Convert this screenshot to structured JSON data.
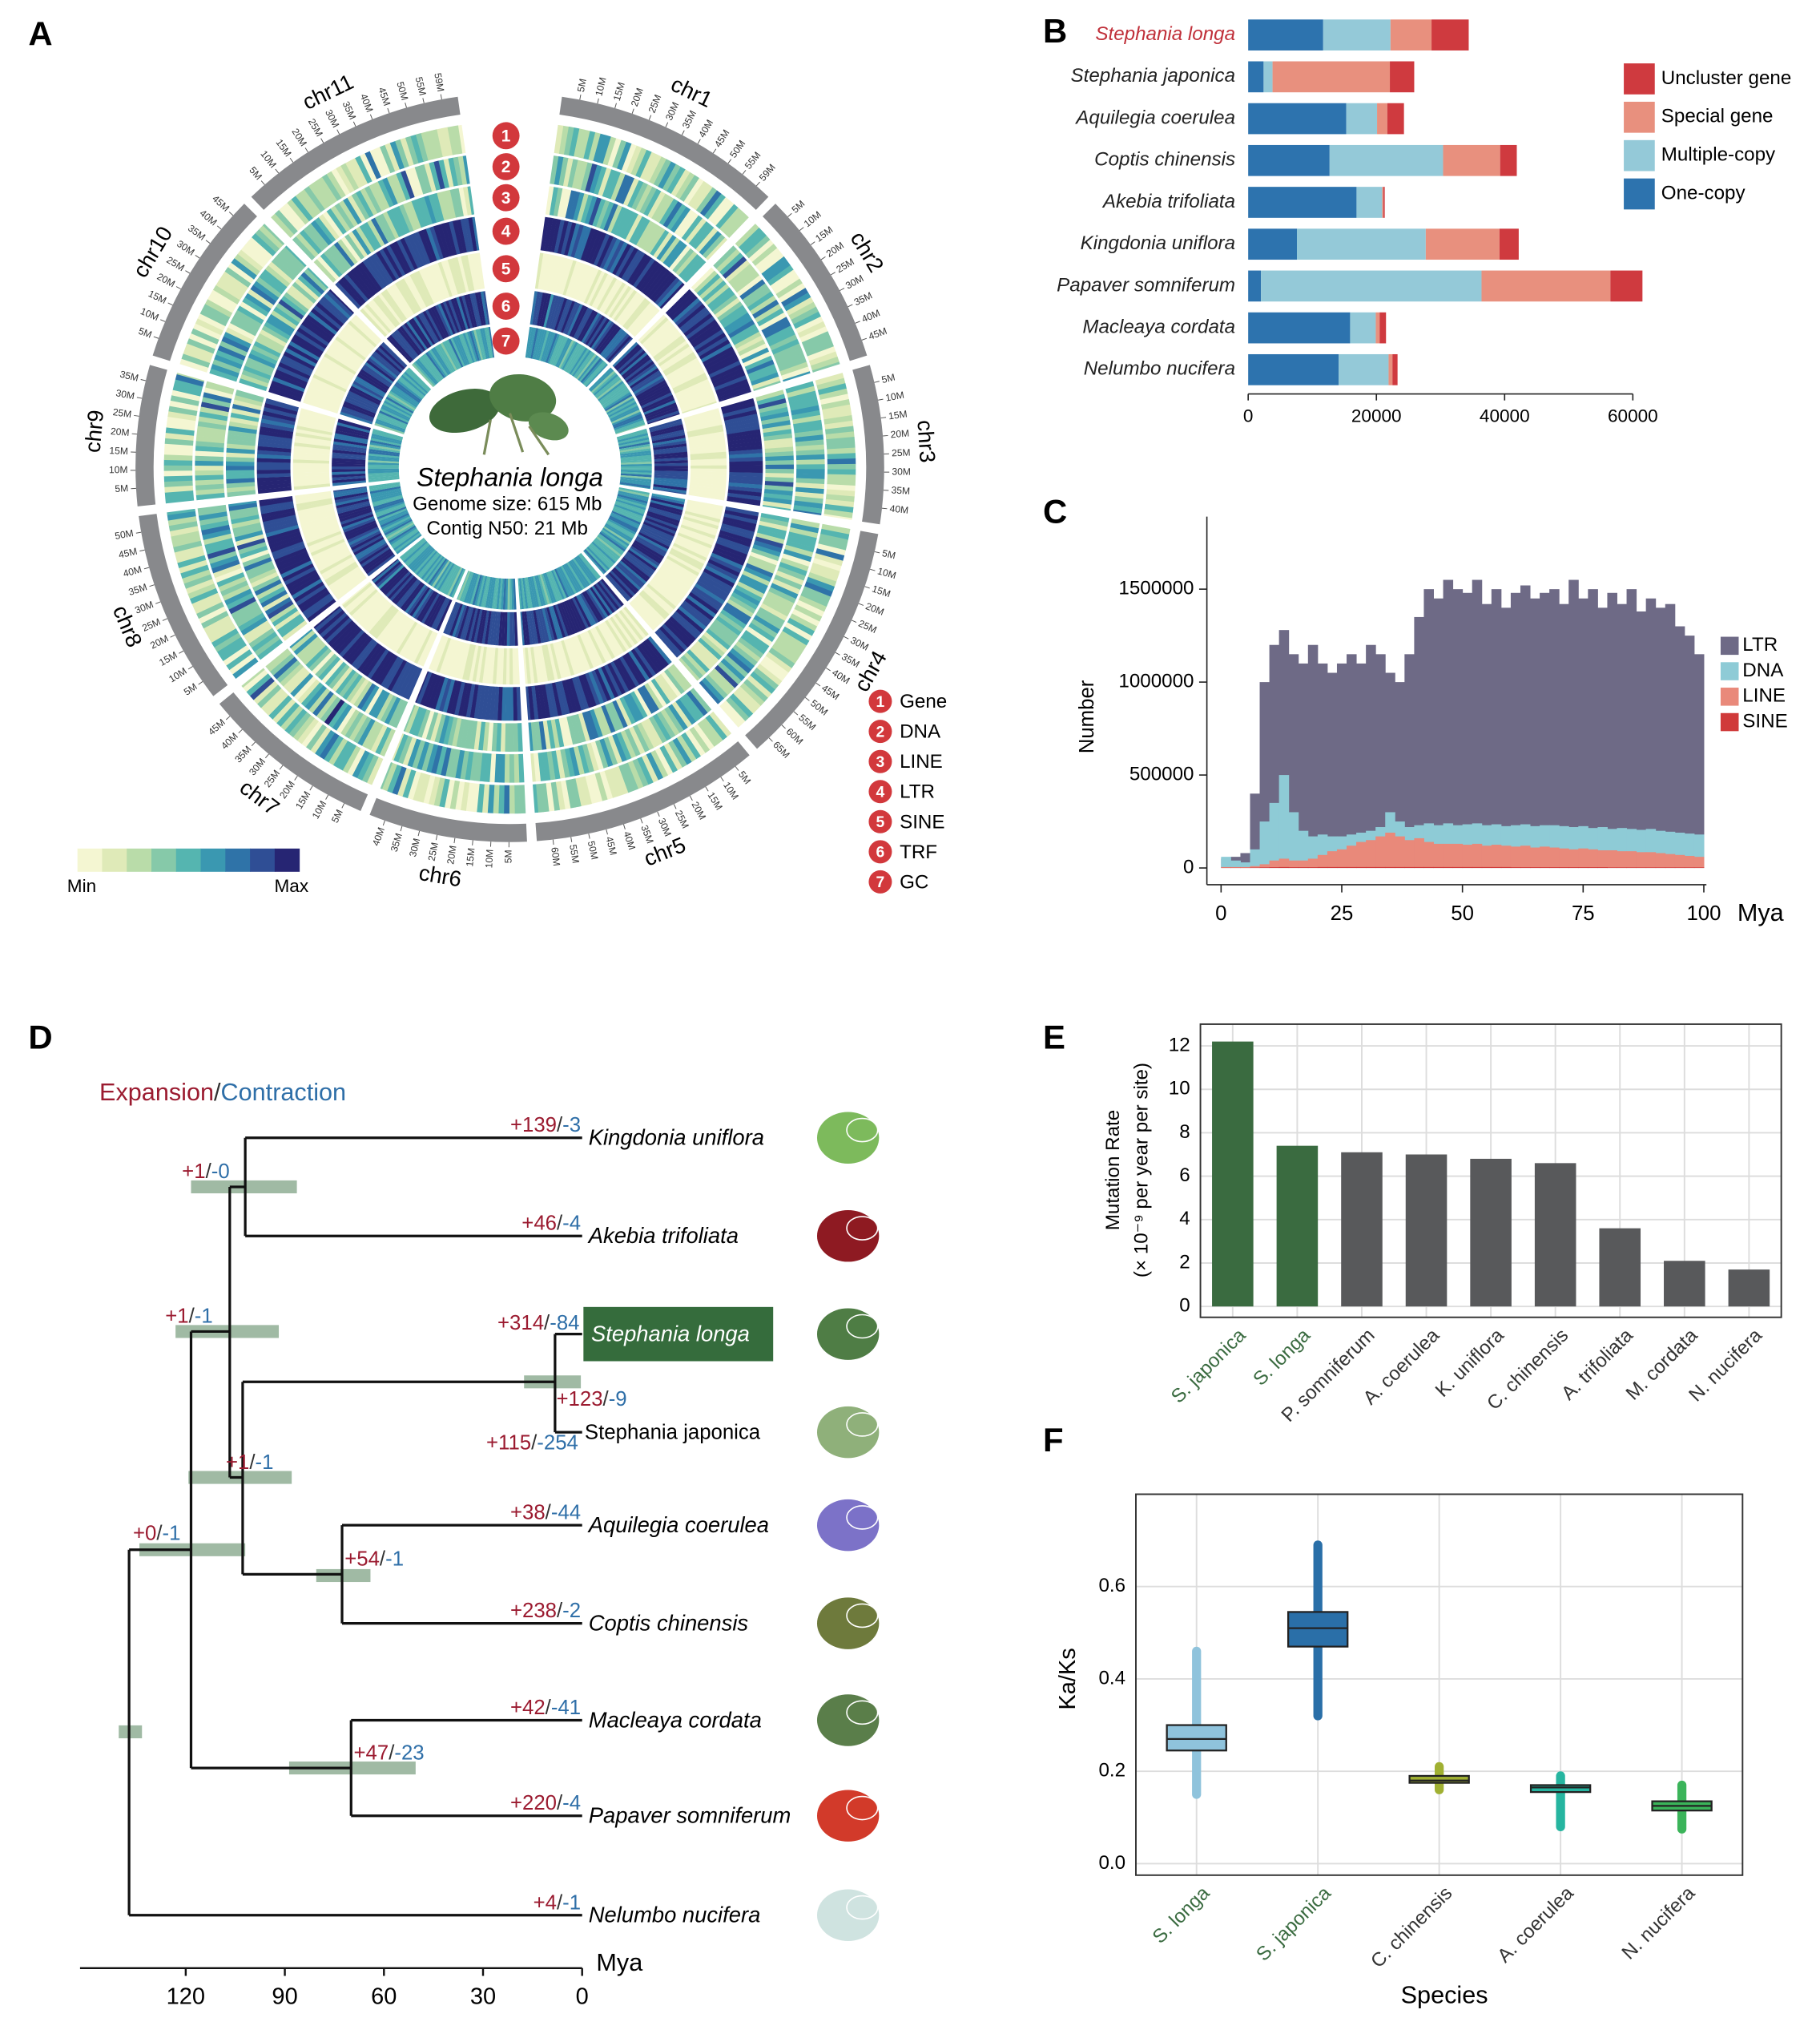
{
  "panels": [
    "A",
    "B",
    "C",
    "D",
    "E",
    "F"
  ],
  "circos": {
    "chromosomes": [
      {
        "name": "chr1",
        "ticks": [
          "5M",
          "10M",
          "15M",
          "20M",
          "25M",
          "30M",
          "35M",
          "40M",
          "45M",
          "50M",
          "55M",
          "59M"
        ]
      },
      {
        "name": "chr2",
        "ticks": [
          "5M",
          "10M",
          "15M",
          "20M",
          "25M",
          "30M",
          "35M",
          "40M",
          "45M"
        ]
      },
      {
        "name": "chr3",
        "ticks": [
          "5M",
          "10M",
          "15M",
          "20M",
          "25M",
          "30M",
          "35M",
          "40M"
        ]
      },
      {
        "name": "chr4",
        "ticks": [
          "5M",
          "10M",
          "15M",
          "20M",
          "25M",
          "30M",
          "35M",
          "40M",
          "45M",
          "50M",
          "55M",
          "60M",
          "65M"
        ]
      },
      {
        "name": "chr5",
        "ticks": [
          "5M",
          "10M",
          "15M",
          "20M",
          "25M",
          "30M",
          "35M",
          "40M",
          "45M",
          "50M",
          "55M",
          "60M"
        ]
      },
      {
        "name": "chr6",
        "ticks": [
          "5M",
          "10M",
          "15M",
          "20M",
          "25M",
          "30M",
          "35M",
          "40M"
        ]
      },
      {
        "name": "chr7",
        "ticks": [
          "5M",
          "10M",
          "15M",
          "20M",
          "25M",
          "30M",
          "35M",
          "40M",
          "45M"
        ]
      },
      {
        "name": "chr8",
        "ticks": [
          "5M",
          "10M",
          "15M",
          "20M",
          "25M",
          "30M",
          "35M",
          "40M",
          "45M",
          "50M"
        ]
      },
      {
        "name": "chr9",
        "ticks": [
          "5M",
          "10M",
          "15M",
          "20M",
          "25M",
          "30M",
          "35M"
        ]
      },
      {
        "name": "chr10",
        "ticks": [
          "5M",
          "10M",
          "15M",
          "20M",
          "25M",
          "30M",
          "35M",
          "40M",
          "45M"
        ]
      },
      {
        "name": "chr11",
        "ticks": [
          "5M",
          "10M",
          "15M",
          "20M",
          "25M",
          "30M",
          "35M",
          "40M",
          "45M",
          "50M",
          "55M",
          "59M"
        ]
      }
    ],
    "tracks": [
      {
        "number": 1,
        "name": "Gene"
      },
      {
        "number": 2,
        "name": "DNA"
      },
      {
        "number": 3,
        "name": "LINE"
      },
      {
        "number": 4,
        "name": "LTR"
      },
      {
        "number": 5,
        "name": "SINE"
      },
      {
        "number": 6,
        "name": "TRF"
      },
      {
        "number": 7,
        "name": "GC"
      }
    ],
    "species": "Stephania longa",
    "genome_size": "Genome size: 615 Mb",
    "contig_n50": "Contig N50: 21 Mb",
    "scale": {
      "min": "Min",
      "max": "Max",
      "palette": [
        "#f4f6d2",
        "#dfeab8",
        "#b9dca9",
        "#86c9a9",
        "#55b5b0",
        "#3a98b1",
        "#2f73a8",
        "#2f4e95",
        "#262573"
      ]
    }
  },
  "tree": {
    "title": {
      "expansion": "Expansion",
      "separator": "/",
      "contraction": "Contraction"
    },
    "leaves": [
      {
        "name": "Kingdonia uniflora",
        "expansion": "+139",
        "contraction": "-3"
      },
      {
        "name": "Akebia trifoliata",
        "expansion": "+46",
        "contraction": "-4"
      },
      {
        "name": "Stephania longa",
        "expansion": "+314",
        "contraction": "-84"
      },
      {
        "name": "Stephania japonica",
        "expansion": "+115",
        "contraction": "-254"
      },
      {
        "name": "Aquilegia coerulea",
        "expansion": "+38",
        "contraction": "-44"
      },
      {
        "name": "Coptis chinensis",
        "expansion": "+238",
        "contraction": "-2"
      },
      {
        "name": "Macleaya cordata",
        "expansion": "+42",
        "contraction": "-41"
      },
      {
        "name": "Papaver somniferum",
        "expansion": "+220",
        "contraction": "-4"
      },
      {
        "name": "Nelumbo nucifera",
        "expansion": "+4",
        "contraction": "-1"
      }
    ],
    "nodes": [
      {
        "expansion": "+1",
        "contraction": "-0"
      },
      {
        "expansion": "+123",
        "contraction": "-9"
      },
      {
        "expansion": "+54",
        "contraction": "-1"
      },
      {
        "expansion": "+47",
        "contraction": "-23"
      },
      {
        "expansion": "+1",
        "contraction": "-1"
      },
      {
        "expansion": "+1",
        "contraction": "-1"
      },
      {
        "expansion": "+0",
        "contraction": "-1"
      }
    ],
    "axis": {
      "lim": [
        152,
        0
      ],
      "ticks": [
        120,
        90,
        60,
        30,
        0
      ],
      "label": "Mya"
    }
  },
  "chart_data": [
    {
      "type": "bar",
      "orientation": "horizontal",
      "stacked": true,
      "categories": [
        "Stephania longa",
        "Stephania japonica",
        "Aquilegia coerulea",
        "Coptis chinensis",
        "Akebia trifoliata",
        "Kingdonia uniflora",
        "Papaver somniferum",
        "Macleaya cordata",
        "Nelumbo nucifera"
      ],
      "label_colors": [
        "#c0303a",
        "#222",
        "#222",
        "#222",
        "#222",
        "#222",
        "#222",
        "#222",
        "#222"
      ],
      "series": [
        {
          "name": "One-copy",
          "color": "#2d73ae",
          "values": [
            11700,
            2400,
            15300,
            12700,
            16900,
            7600,
            2000,
            15900,
            14100
          ]
        },
        {
          "name": "Multiple-copy",
          "color": "#94c9d8",
          "values": [
            10500,
            1400,
            4800,
            17700,
            4000,
            20100,
            34400,
            4000,
            7800
          ]
        },
        {
          "name": "Special gene",
          "color": "#e8907e",
          "values": [
            6400,
            18300,
            1600,
            8900,
            200,
            11500,
            20100,
            600,
            600
          ]
        },
        {
          "name": "Uncluster gene",
          "color": "#cf3a3f",
          "values": [
            5800,
            3800,
            2600,
            2600,
            200,
            3000,
            5000,
            1000,
            800
          ]
        }
      ],
      "xlim": [
        0,
        60000
      ],
      "xticks": [
        0,
        20000,
        40000,
        60000
      ]
    },
    {
      "type": "histogram",
      "bins": [
        0,
        2,
        4,
        6,
        8,
        10,
        12,
        14,
        16,
        18,
        20,
        22,
        24,
        26,
        28,
        30,
        32,
        34,
        36,
        38,
        40,
        42,
        44,
        46,
        48,
        50,
        52,
        54,
        56,
        58,
        60,
        62,
        64,
        66,
        68,
        70,
        72,
        74,
        76,
        78,
        80,
        82,
        84,
        86,
        88,
        90,
        92,
        94,
        96,
        98,
        100
      ],
      "series": [
        {
          "name": "LTR",
          "color": "#6e6a86",
          "values": [
            50000,
            60000,
            80000,
            400000,
            1000000,
            1200000,
            1280000,
            1150000,
            1100000,
            1200000,
            1100000,
            1050000,
            1100000,
            1150000,
            1100000,
            1200000,
            1150000,
            1050000,
            1000000,
            1150000,
            1350000,
            1500000,
            1450000,
            1550000,
            1500000,
            1480000,
            1550000,
            1420000,
            1500000,
            1400000,
            1480000,
            1520000,
            1450000,
            1480000,
            1500000,
            1420000,
            1550000,
            1450000,
            1500000,
            1400000,
            1480000,
            1420000,
            1500000,
            1380000,
            1450000,
            1400000,
            1420000,
            1300000,
            1250000,
            1150000
          ]
        },
        {
          "name": "DNA",
          "color": "#8ecbd6",
          "values": [
            60000,
            40000,
            30000,
            100000,
            250000,
            350000,
            500000,
            300000,
            200000,
            170000,
            180000,
            170000,
            170000,
            180000,
            190000,
            200000,
            220000,
            300000,
            250000,
            220000,
            230000,
            240000,
            230000,
            240000,
            230000,
            235000,
            240000,
            230000,
            235000,
            225000,
            230000,
            235000,
            225000,
            230000,
            230000,
            225000,
            220000,
            225000,
            215000,
            220000,
            210000,
            215000,
            210000,
            205000,
            210000,
            200000,
            195000,
            190000,
            185000,
            180000
          ]
        },
        {
          "name": "LINE",
          "color": "#e9897a",
          "values": [
            5000,
            5000,
            5000,
            10000,
            20000,
            40000,
            50000,
            40000,
            40000,
            50000,
            70000,
            90000,
            100000,
            120000,
            140000,
            150000,
            170000,
            190000,
            170000,
            150000,
            160000,
            140000,
            130000,
            130000,
            130000,
            125000,
            130000,
            120000,
            125000,
            120000,
            115000,
            120000,
            110000,
            115000,
            110000,
            105000,
            100000,
            105000,
            100000,
            95000,
            95000,
            90000,
            90000,
            85000,
            85000,
            80000,
            75000,
            70000,
            65000,
            60000
          ]
        },
        {
          "name": "SINE",
          "color": "#d03a3a",
          "values": [
            1000,
            1000,
            1000,
            2000,
            3000,
            4000,
            5000,
            4000,
            4000,
            4000,
            5000,
            5000,
            5000,
            5000,
            5000,
            5000,
            5000,
            5000,
            5000,
            5000,
            5000,
            5000,
            5000,
            5000,
            5000,
            5000,
            5000,
            5000,
            5000,
            5000,
            4000,
            4000,
            4000,
            4000,
            4000,
            4000,
            4000,
            4000,
            4000,
            4000,
            3000,
            3000,
            3000,
            3000,
            3000,
            3000,
            3000,
            3000,
            3000,
            3000
          ]
        }
      ],
      "xlim": [
        0,
        100
      ],
      "xticks": [
        0,
        25,
        50,
        75,
        100
      ],
      "ylim": [
        -90000,
        1890000
      ],
      "yticks": [
        0,
        500000,
        1000000,
        1500000
      ],
      "xlabel": "Mya",
      "ylabel": "Number"
    },
    {
      "type": "bar",
      "categories": [
        "S. japonica",
        "S. longa",
        "P. somniferum",
        "A. coerulea",
        "K. uniflora",
        "C. chinensis",
        "A. trifoliata",
        "M. cordata",
        "N. nucifera"
      ],
      "values": [
        12.2,
        7.4,
        7.1,
        7.0,
        6.8,
        6.6,
        3.6,
        2.1,
        1.7
      ],
      "colors": [
        "#3a6b40",
        "#3a6b40",
        "#58595b",
        "#58595b",
        "#58595b",
        "#58595b",
        "#58595b",
        "#58595b",
        "#58595b"
      ],
      "label_colors": [
        "#3a6b40",
        "#3a6b40",
        "#333",
        "#333",
        "#333",
        "#333",
        "#333",
        "#333",
        "#333"
      ],
      "ylim": [
        -0.5,
        13
      ],
      "yticks": [
        0,
        2,
        4,
        6,
        8,
        10,
        12
      ],
      "ylabel": [
        "Mutation Rate",
        "(× 10⁻⁹ per year per site)"
      ],
      "grid": true
    },
    {
      "type": "box",
      "categories": [
        "S. longa",
        "S. japonica",
        "C. chinensis",
        "A. coerulea",
        "N. nucifera"
      ],
      "min": [
        0.15,
        0.32,
        0.16,
        0.08,
        0.075
      ],
      "q1": [
        0.245,
        0.47,
        0.175,
        0.155,
        0.115
      ],
      "median": [
        0.27,
        0.51,
        0.18,
        0.165,
        0.125
      ],
      "q3": [
        0.3,
        0.545,
        0.19,
        0.17,
        0.135
      ],
      "max": [
        0.46,
        0.69,
        0.21,
        0.19,
        0.17
      ],
      "colors": [
        "#8fc3dc",
        "#2a6fa8",
        "#a0b032",
        "#26b5a0",
        "#3bb45a"
      ],
      "label_colors": [
        "#3a6b40",
        "#3a6b40",
        "#333",
        "#333",
        "#333"
      ],
      "ylim": [
        -0.025,
        0.8
      ],
      "yticks": [
        {
          "value": 0,
          "label": "0.0"
        },
        0.2,
        0.4,
        0.6
      ],
      "xlabel": "Species",
      "ylabel": "Ka/Ks",
      "grid": true
    }
  ]
}
